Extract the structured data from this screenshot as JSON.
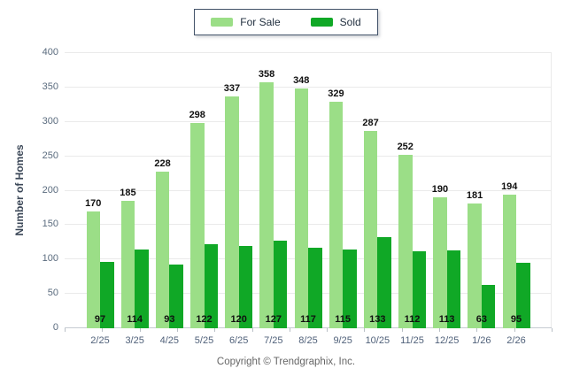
{
  "legend": {
    "items": [
      {
        "label": "For Sale",
        "color": "#9bde87"
      },
      {
        "label": "Sold",
        "color": "#10a826"
      }
    ]
  },
  "y_axis": {
    "title": "Number of Homes",
    "ticks": [
      0,
      50,
      100,
      150,
      200,
      250,
      300,
      350,
      400
    ]
  },
  "footer": {
    "copyright": "Copyright © Trendgraphix, Inc."
  },
  "chart_data": {
    "type": "bar",
    "title": "",
    "categories": [
      "2/25",
      "3/25",
      "4/25",
      "5/25",
      "6/25",
      "7/25",
      "8/25",
      "9/25",
      "10/25",
      "11/25",
      "12/25",
      "1/26",
      "2/26"
    ],
    "series": [
      {
        "name": "For Sale",
        "color": "#9bde87",
        "values": [
          170,
          185,
          228,
          298,
          337,
          358,
          348,
          329,
          287,
          252,
          190,
          181,
          194
        ],
        "label_position": "above-bar"
      },
      {
        "name": "Sold",
        "color": "#10a826",
        "values": [
          97,
          114,
          93,
          122,
          120,
          127,
          117,
          115,
          133,
          112,
          113,
          63,
          95
        ],
        "label_position": "inside-bottom"
      }
    ],
    "xlabel": "",
    "ylabel": "Number of Homes",
    "ylim": [
      0,
      400
    ],
    "ytick_step": 50,
    "grid": true,
    "legend_position": "top-center"
  }
}
